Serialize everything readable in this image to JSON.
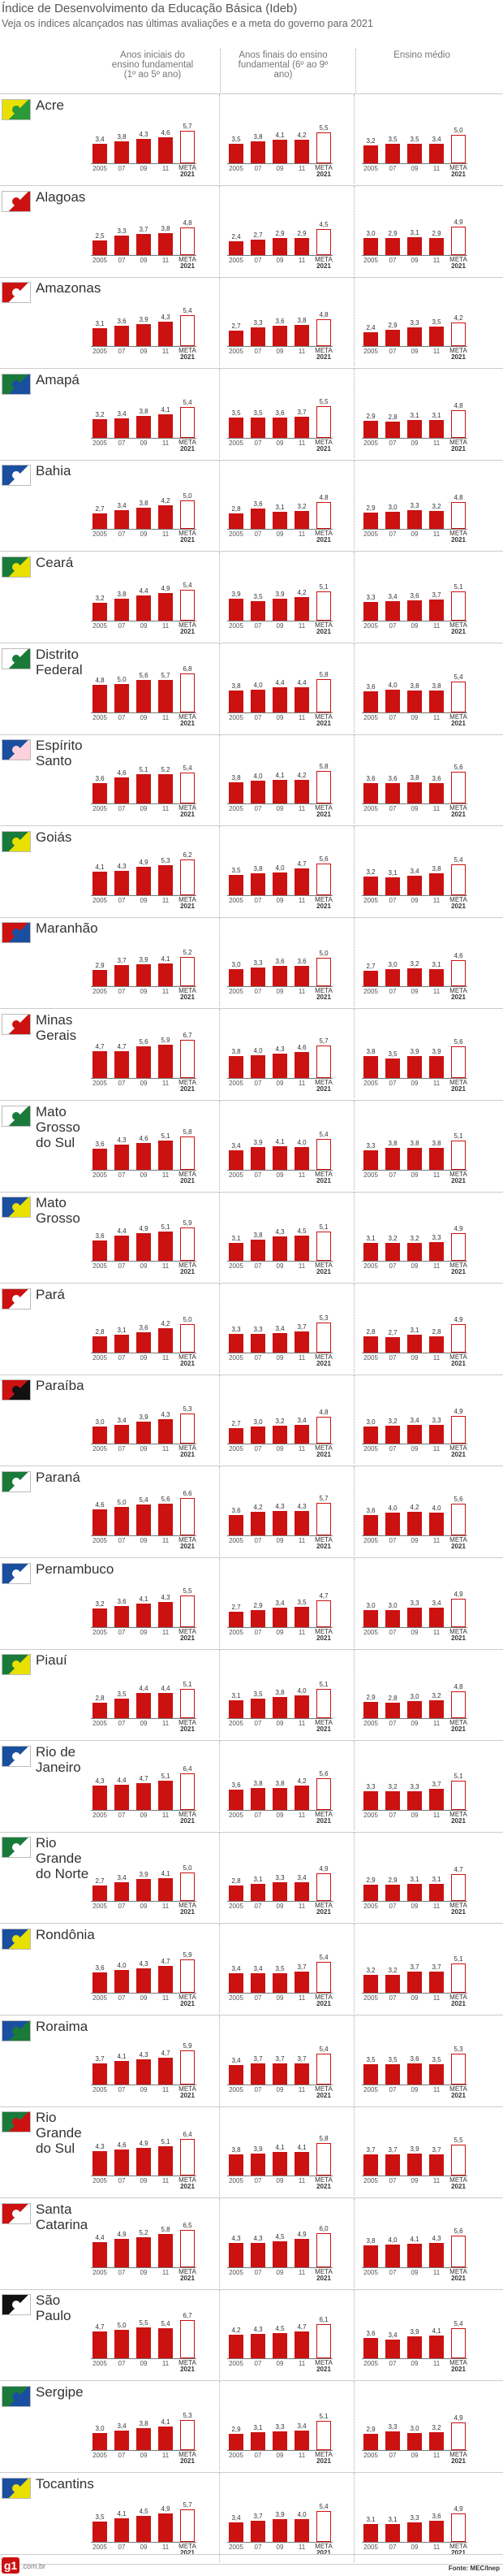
{
  "page": {
    "title": "Índice de Desenvolvimento da Educação Básica (Ideb)",
    "subtitle": "Veja os índices alcançados nas últimas avaliações e a meta do governo para 2021",
    "columns": [
      "Anos iniciais do ensino fundamental (1º ao 5º ano)",
      "Anos finais do ensino fundamental (6º ao 9º ano)",
      "Ensino médio"
    ],
    "source": "Fonte: MEC/Inep",
    "logo_text": "g1",
    "logo_domain": ".com.br",
    "meta_label": "META",
    "meta_year": "2021"
  },
  "chart_data": {
    "type": "bar",
    "categories": [
      "2005",
      "07",
      "09",
      "11",
      "META 2021"
    ],
    "panels": [
      "Anos iniciais do ensino fundamental (1º ao 5º ano)",
      "Anos finais do ensino fundamental (6º ao 9º ano)",
      "Ensino médio"
    ],
    "states": [
      {
        "name": "Acre",
        "flag": [
          "#e8e000",
          "#2a9a3a"
        ],
        "ai": [
          3.4,
          3.8,
          4.3,
          4.6,
          5.7
        ],
        "af": [
          3.5,
          3.8,
          4.1,
          4.2,
          5.5
        ],
        "em": [
          3.2,
          3.5,
          3.5,
          3.4,
          5.0
        ]
      },
      {
        "name": "Alagoas",
        "flag": [
          "#ffffff",
          "#cc1111"
        ],
        "ai": [
          2.5,
          3.3,
          3.7,
          3.8,
          4.8
        ],
        "af": [
          2.4,
          2.7,
          2.9,
          2.9,
          4.5
        ],
        "em": [
          3.0,
          2.9,
          3.1,
          2.9,
          4.9
        ]
      },
      {
        "name": "Amazonas",
        "flag": [
          "#cc1111",
          "#ffffff"
        ],
        "ai": [
          3.1,
          3.6,
          3.9,
          4.3,
          5.4
        ],
        "af": [
          2.7,
          3.3,
          3.6,
          3.8,
          4.8
        ],
        "em": [
          2.4,
          2.9,
          3.3,
          3.5,
          4.2
        ]
      },
      {
        "name": "Amapá",
        "flag": [
          "#1a7a3a",
          "#1a4fa0"
        ],
        "ai": [
          3.2,
          3.4,
          3.8,
          4.1,
          5.4
        ],
        "af": [
          3.5,
          3.5,
          3.6,
          3.7,
          5.5
        ],
        "em": [
          2.9,
          2.8,
          3.1,
          3.1,
          4.8
        ]
      },
      {
        "name": "Bahia",
        "flag": [
          "#1a4fa0",
          "#ffffff"
        ],
        "ai": [
          2.7,
          3.4,
          3.8,
          4.2,
          5.0
        ],
        "af": [
          2.8,
          3.6,
          3.1,
          3.2,
          4.8
        ],
        "em": [
          2.9,
          3.0,
          3.3,
          3.2,
          4.8
        ]
      },
      {
        "name": "Ceará",
        "flag": [
          "#1a7a3a",
          "#e8e000"
        ],
        "ai": [
          3.2,
          3.8,
          4.4,
          4.9,
          5.4
        ],
        "af": [
          3.9,
          3.5,
          3.9,
          4.2,
          5.1
        ],
        "em": [
          3.3,
          3.4,
          3.6,
          3.7,
          5.1
        ]
      },
      {
        "name": "Distrito Federal",
        "flag": [
          "#ffffff",
          "#1a7a3a"
        ],
        "ai": [
          4.8,
          5.0,
          5.6,
          5.7,
          6.8
        ],
        "af": [
          3.8,
          4.0,
          4.4,
          4.4,
          5.8
        ],
        "em": [
          3.6,
          4.0,
          3.8,
          3.8,
          5.4
        ]
      },
      {
        "name": "Espírito Santo",
        "flag": [
          "#1a4fa0",
          "#ffd0dd"
        ],
        "ai": [
          3.6,
          4.6,
          5.1,
          5.2,
          5.4
        ],
        "af": [
          3.8,
          4.0,
          4.1,
          4.2,
          5.8
        ],
        "em": [
          3.6,
          3.6,
          3.8,
          3.6,
          5.6
        ]
      },
      {
        "name": "Goiás",
        "flag": [
          "#1a7a3a",
          "#e8e000"
        ],
        "ai": [
          4.1,
          4.3,
          4.9,
          5.3,
          6.2
        ],
        "af": [
          3.5,
          3.8,
          4.0,
          4.7,
          5.6
        ],
        "em": [
          3.2,
          3.1,
          3.4,
          3.8,
          5.4
        ]
      },
      {
        "name": "Maranhão",
        "flag": [
          "#cc1111",
          "#1a4fa0"
        ],
        "ai": [
          2.9,
          3.7,
          3.9,
          4.1,
          5.2
        ],
        "af": [
          3.0,
          3.3,
          3.6,
          3.6,
          5.0
        ],
        "em": [
          2.7,
          3.0,
          3.2,
          3.1,
          4.6
        ]
      },
      {
        "name": "Minas Gerais",
        "flag": [
          "#ffffff",
          "#cc1111"
        ],
        "ai": [
          4.7,
          4.7,
          5.6,
          5.9,
          6.7
        ],
        "af": [
          3.8,
          4.0,
          4.3,
          4.6,
          5.7
        ],
        "em": [
          3.8,
          3.5,
          3.9,
          3.9,
          5.6
        ]
      },
      {
        "name": "Mato Grosso do Sul",
        "flag": [
          "#ffffff",
          "#1a7a3a"
        ],
        "ai": [
          3.6,
          4.3,
          4.6,
          5.1,
          5.8
        ],
        "af": [
          3.4,
          3.9,
          4.1,
          4.0,
          5.4
        ],
        "em": [
          3.3,
          3.8,
          3.8,
          3.8,
          5.1
        ]
      },
      {
        "name": "Mato Grosso",
        "flag": [
          "#1a4fa0",
          "#e8e000"
        ],
        "ai": [
          3.6,
          4.4,
          4.9,
          5.1,
          5.9
        ],
        "af": [
          3.1,
          3.8,
          4.3,
          4.5,
          5.1
        ],
        "em": [
          3.1,
          3.2,
          3.2,
          3.3,
          4.9
        ]
      },
      {
        "name": "Pará",
        "flag": [
          "#cc1111",
          "#ffffff"
        ],
        "ai": [
          2.8,
          3.1,
          3.6,
          4.2,
          5.0
        ],
        "af": [
          3.3,
          3.3,
          3.4,
          3.7,
          5.3
        ],
        "em": [
          2.8,
          2.7,
          3.1,
          2.8,
          4.9
        ]
      },
      {
        "name": "Paraíba",
        "flag": [
          "#cc1111",
          "#111111"
        ],
        "ai": [
          3.0,
          3.4,
          3.9,
          4.3,
          5.3
        ],
        "af": [
          2.7,
          3.0,
          3.2,
          3.4,
          4.8
        ],
        "em": [
          3.0,
          3.2,
          3.4,
          3.3,
          4.9
        ]
      },
      {
        "name": "Paraná",
        "flag": [
          "#1a7a3a",
          "#ffffff"
        ],
        "ai": [
          4.6,
          5.0,
          5.4,
          5.6,
          6.6
        ],
        "af": [
          3.6,
          4.2,
          4.3,
          4.3,
          5.7
        ],
        "em": [
          3.6,
          4.0,
          4.2,
          4.0,
          5.6
        ]
      },
      {
        "name": "Pernambuco",
        "flag": [
          "#1a4fa0",
          "#ffffff"
        ],
        "ai": [
          3.2,
          3.6,
          4.1,
          4.3,
          5.5
        ],
        "af": [
          2.7,
          2.9,
          3.4,
          3.5,
          4.7
        ],
        "em": [
          3.0,
          3.0,
          3.3,
          3.4,
          4.9
        ]
      },
      {
        "name": "Piauí",
        "flag": [
          "#1a7a3a",
          "#e8e000"
        ],
        "ai": [
          2.8,
          3.5,
          4.4,
          4.4,
          5.1
        ],
        "af": [
          3.1,
          3.5,
          3.8,
          4.0,
          5.1
        ],
        "em": [
          2.9,
          2.8,
          3.0,
          3.2,
          4.8
        ]
      },
      {
        "name": "Rio de Janeiro",
        "flag": [
          "#1a4fa0",
          "#ffffff"
        ],
        "ai": [
          4.3,
          4.4,
          4.7,
          5.1,
          6.4
        ],
        "af": [
          3.6,
          3.8,
          3.8,
          4.2,
          5.6
        ],
        "em": [
          3.3,
          3.2,
          3.3,
          3.7,
          5.1
        ]
      },
      {
        "name": "Rio Grande do Norte",
        "flag": [
          "#1a7a3a",
          "#ffffff"
        ],
        "ai": [
          2.7,
          3.4,
          3.9,
          4.1,
          5.0
        ],
        "af": [
          2.8,
          3.1,
          3.3,
          3.4,
          4.9
        ],
        "em": [
          2.9,
          2.9,
          3.1,
          3.1,
          4.7
        ]
      },
      {
        "name": "Rondônia",
        "flag": [
          "#1a4fa0",
          "#e8e000"
        ],
        "ai": [
          3.6,
          4.0,
          4.3,
          4.7,
          5.9
        ],
        "af": [
          3.4,
          3.4,
          3.5,
          3.7,
          5.4
        ],
        "em": [
          3.2,
          3.2,
          3.7,
          3.7,
          5.1
        ]
      },
      {
        "name": "Roraima",
        "flag": [
          "#1a4fa0",
          "#1a7a3a"
        ],
        "ai": [
          3.7,
          4.1,
          4.3,
          4.7,
          5.9
        ],
        "af": [
          3.4,
          3.7,
          3.7,
          3.7,
          5.4
        ],
        "em": [
          3.5,
          3.5,
          3.6,
          3.5,
          5.3
        ]
      },
      {
        "name": "Rio Grande do Sul",
        "flag": [
          "#1a7a3a",
          "#cc1111"
        ],
        "ai": [
          4.3,
          4.6,
          4.9,
          5.1,
          6.4
        ],
        "af": [
          3.8,
          3.9,
          4.1,
          4.1,
          5.8
        ],
        "em": [
          3.7,
          3.7,
          3.9,
          3.7,
          5.5
        ]
      },
      {
        "name": "Santa Catarina",
        "flag": [
          "#cc1111",
          "#ffffff"
        ],
        "ai": [
          4.4,
          4.9,
          5.2,
          5.8,
          6.5
        ],
        "af": [
          4.3,
          4.3,
          4.5,
          4.9,
          6.0
        ],
        "em": [
          3.8,
          4.0,
          4.1,
          4.3,
          5.6
        ]
      },
      {
        "name": "São Paulo",
        "flag": [
          "#111111",
          "#ffffff"
        ],
        "ai": [
          4.7,
          5.0,
          5.5,
          5.4,
          6.7
        ],
        "af": [
          4.2,
          4.3,
          4.5,
          4.7,
          6.1
        ],
        "em": [
          3.6,
          3.4,
          3.9,
          4.1,
          5.4
        ]
      },
      {
        "name": "Sergipe",
        "flag": [
          "#1a7a3a",
          "#1a4fa0"
        ],
        "ai": [
          3.0,
          3.4,
          3.8,
          4.1,
          5.3
        ],
        "af": [
          2.9,
          3.1,
          3.3,
          3.4,
          5.1
        ],
        "em": [
          2.9,
          3.3,
          3.0,
          3.2,
          4.9
        ]
      },
      {
        "name": "Tocantins",
        "flag": [
          "#1a4fa0",
          "#e8e000"
        ],
        "ai": [
          3.5,
          4.1,
          4.5,
          4.9,
          5.7
        ],
        "af": [
          3.4,
          3.7,
          3.9,
          4.0,
          5.4
        ],
        "em": [
          3.1,
          3.1,
          3.3,
          3.6,
          4.9
        ]
      }
    ]
  }
}
